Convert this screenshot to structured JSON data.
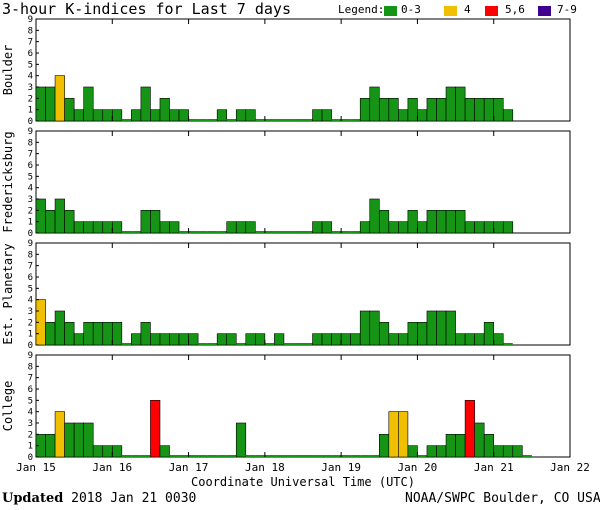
{
  "title": "3-hour K-indices for Last 7 days",
  "legend": {
    "label": "Legend:",
    "items": [
      {
        "label": "0-3",
        "color": "#169416"
      },
      {
        "label": "4",
        "color": "#f0c000"
      },
      {
        "label": "5,6",
        "color": "#ff0000"
      },
      {
        "label": "7-9",
        "color": "#400090"
      }
    ]
  },
  "footer": {
    "updated_label": "Updated",
    "updated_value": "2018 Jan 21 0030",
    "credit": "NOAA/SWPC Boulder, CO USA"
  },
  "chart_data": {
    "type": "bar",
    "xlabel": "Coordinate Universal Time (UTC)",
    "x_ticks": [
      "Jan 15",
      "Jan 16",
      "Jan 17",
      "Jan 18",
      "Jan 19",
      "Jan 20",
      "Jan 21",
      "Jan 22"
    ],
    "ylim": [
      0,
      9
    ],
    "y_ticks": [
      "0",
      "1",
      "2",
      "3",
      "4",
      "5",
      "6",
      "7",
      "8",
      "9"
    ],
    "color_scale": {
      "0-3": "#169416",
      "4": "#f0c000",
      "5,6": "#ff0000",
      "7-9": "#400090"
    },
    "panels": [
      {
        "name": "Boulder",
        "values": [
          3,
          3,
          4,
          2,
          1,
          3,
          1,
          1,
          1,
          0,
          1,
          3,
          1,
          2,
          1,
          1,
          0,
          0,
          0,
          1,
          0,
          1,
          1,
          0,
          0,
          0,
          0,
          0,
          0,
          1,
          1,
          0,
          0,
          0,
          2,
          3,
          2,
          2,
          1,
          2,
          1,
          2,
          2,
          3,
          3,
          2,
          2,
          2,
          2,
          1
        ]
      },
      {
        "name": "Fredericksburg",
        "values": [
          3,
          2,
          3,
          2,
          1,
          1,
          1,
          1,
          1,
          0,
          0,
          2,
          2,
          1,
          1,
          0,
          0,
          0,
          0,
          0,
          1,
          1,
          1,
          0,
          0,
          0,
          0,
          0,
          0,
          1,
          1,
          0,
          0,
          0,
          1,
          3,
          2,
          1,
          1,
          2,
          1,
          2,
          2,
          2,
          2,
          1,
          1,
          1,
          1,
          1
        ]
      },
      {
        "name": "Est. Planetary",
        "values": [
          4,
          2,
          3,
          2,
          1,
          2,
          2,
          2,
          2,
          0,
          1,
          2,
          1,
          1,
          1,
          1,
          1,
          0,
          0,
          1,
          1,
          0,
          1,
          1,
          0,
          1,
          0,
          0,
          0,
          1,
          1,
          1,
          1,
          1,
          3,
          3,
          2,
          1,
          1,
          2,
          2,
          3,
          3,
          3,
          1,
          1,
          1,
          2,
          1,
          0
        ]
      },
      {
        "name": "College",
        "values": [
          2,
          2,
          4,
          3,
          3,
          3,
          1,
          1,
          1,
          0,
          0,
          0,
          5,
          1,
          0,
          0,
          0,
          0,
          0,
          0,
          0,
          3,
          0,
          0,
          0,
          0,
          0,
          0,
          0,
          0,
          0,
          0,
          0,
          0,
          0,
          0,
          2,
          4,
          4,
          1,
          0,
          1,
          1,
          2,
          2,
          5,
          3,
          2,
          1,
          1,
          1,
          0
        ]
      }
    ]
  }
}
